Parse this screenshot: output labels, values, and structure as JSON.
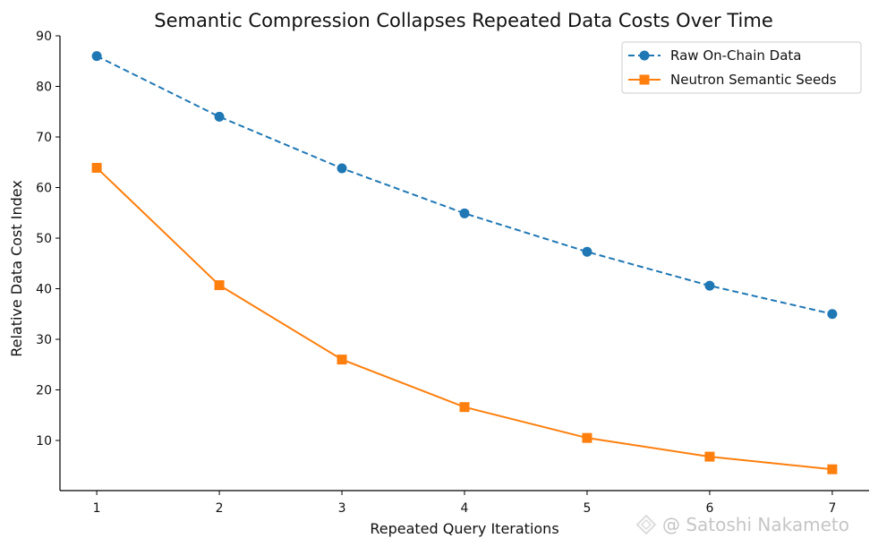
{
  "chart_data": {
    "type": "line",
    "title": "Semantic Compression Collapses Repeated Data Costs Over Time",
    "xlabel": "Repeated Query Iterations",
    "ylabel": "Relative Data Cost Index",
    "x": [
      1,
      2,
      3,
      4,
      5,
      6,
      7
    ],
    "xlim": [
      0.7,
      7.3
    ],
    "ylim": [
      0,
      90
    ],
    "xticks": [
      1,
      2,
      3,
      4,
      5,
      6,
      7
    ],
    "yticks": [
      10,
      20,
      30,
      40,
      50,
      60,
      70,
      80,
      90
    ],
    "grid": false,
    "legend_position": "top-right",
    "series": [
      {
        "name": "Raw On-Chain Data",
        "color": "#1f77b4",
        "line_style": "dashed",
        "marker": "circle",
        "values": [
          86.0,
          74.0,
          63.8,
          54.9,
          47.3,
          40.6,
          35.0
        ]
      },
      {
        "name": "Neutron Semantic Seeds",
        "color": "#ff7f0e",
        "line_style": "solid",
        "marker": "square",
        "values": [
          63.9,
          40.7,
          26.0,
          16.6,
          10.5,
          6.8,
          4.3
        ]
      }
    ]
  },
  "watermark": {
    "text": "@ Satoshi Nakameto"
  }
}
